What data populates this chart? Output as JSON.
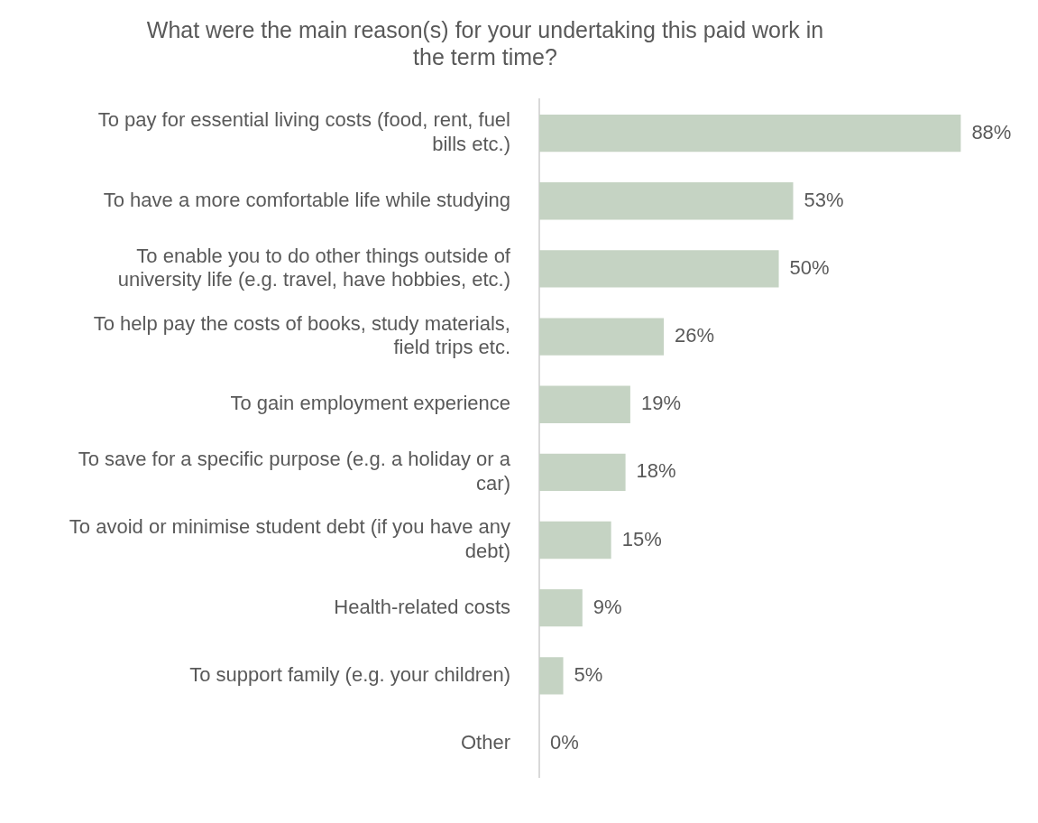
{
  "chart_data": {
    "type": "bar",
    "orientation": "horizontal",
    "title": "What were the main reason(s) for your undertaking this paid work in the term time?",
    "categories": [
      "To pay for essential living costs (food, rent, fuel bills etc.)",
      "To have a more comfortable life while studying",
      "To enable you to do other things outside of university life (e.g. travel, have hobbies, etc.)",
      "To help pay the costs of books, study materials, field trips etc.",
      "To gain employment experience",
      "To save for a specific purpose (e.g. a holiday or a car)",
      "To avoid or minimise student debt (if you have any debt)",
      "Health-related costs",
      "To support family (e.g. your children)",
      "Other"
    ],
    "values": [
      88,
      53,
      50,
      26,
      19,
      18,
      15,
      9,
      5,
      0
    ],
    "value_labels": [
      "88%",
      "53%",
      "50%",
      "26%",
      "19%",
      "18%",
      "15%",
      "9%",
      "5%",
      "0%"
    ],
    "color": "#c5d3c3",
    "legend": false
  }
}
